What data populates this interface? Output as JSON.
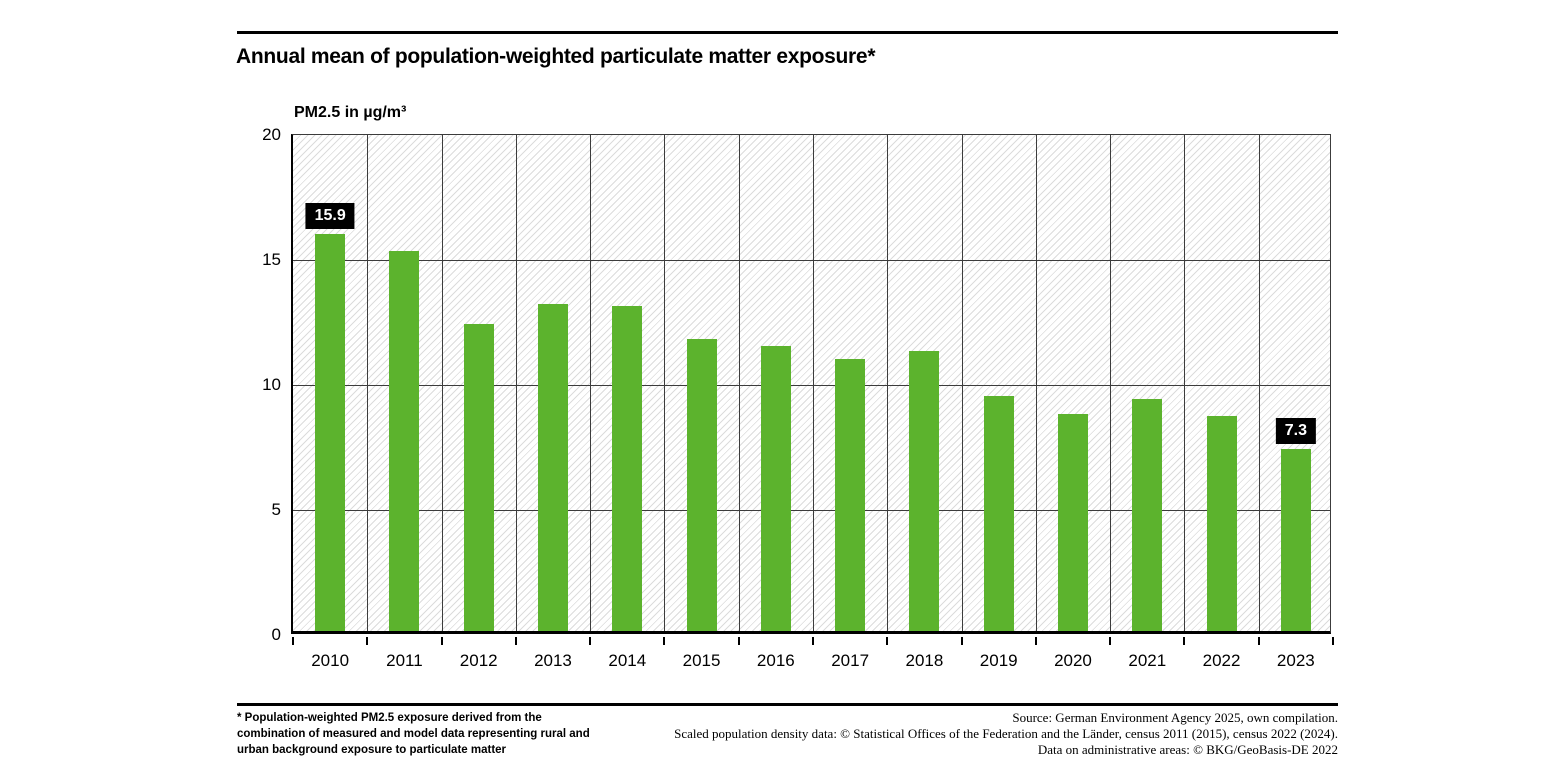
{
  "chart_data": {
    "type": "bar",
    "title": "Annual mean of population-weighted particulate matter exposure*",
    "ylabel": "PM2.5 in µg/m³",
    "categories": [
      "2010",
      "2011",
      "2012",
      "2013",
      "2014",
      "2015",
      "2016",
      "2017",
      "2018",
      "2019",
      "2020",
      "2021",
      "2022",
      "2023"
    ],
    "values": [
      15.9,
      15.2,
      12.3,
      13.1,
      13.0,
      11.7,
      11.4,
      10.9,
      11.2,
      9.4,
      8.7,
      9.3,
      8.6,
      7.3
    ],
    "ylim": [
      0,
      20
    ],
    "yticks": [
      0,
      5,
      10,
      15,
      20
    ],
    "grid": true,
    "legend": "none",
    "annotations": [
      {
        "category": "2010",
        "text": "15.9"
      },
      {
        "category": "2023",
        "text": "7.3"
      }
    ]
  },
  "colors": {
    "bar": "#5CB32D",
    "grid": "#3C3C3C",
    "hatch": "#DCDCDC",
    "rule": "#000000",
    "annotation_bg": "#000000",
    "annotation_text": "#FFFFFF"
  },
  "footnote": {
    "lines": [
      "* Population-weighted PM2.5 exposure derived from the",
      "combination of measured and model data representing rural and",
      "urban background exposure to particulate matter"
    ]
  },
  "source": {
    "lines": [
      "Source: German Environment Agency 2025, own compilation.",
      "Scaled population density data: © Statistical Offices of the Federation and the Länder, census 2011 (2015), census 2022 (2024).",
      "Data on administrative areas: © BKG/GeoBasis-DE 2022"
    ]
  }
}
